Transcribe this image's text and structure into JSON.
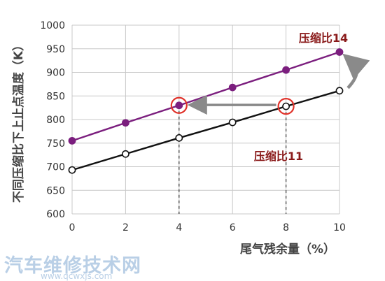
{
  "chart_data": {
    "type": "line",
    "ylabel": "不同压缩比下上止点温度（K）",
    "xlabel": "尾气残余量（%）",
    "x": [
      0,
      2,
      4,
      6,
      8,
      10
    ],
    "xlim": [
      0,
      10
    ],
    "ylim": [
      600,
      1000
    ],
    "xticks": [
      "0",
      "2",
      "4",
      "6",
      "8",
      "10"
    ],
    "yticks": [
      "600",
      "650",
      "700",
      "750",
      "800",
      "850",
      "900",
      "950",
      "1000"
    ],
    "grid": true,
    "series": [
      {
        "name": "压缩比14",
        "values": [
          755,
          793,
          830,
          868,
          905,
          943
        ],
        "color": "#7b1e7e",
        "marker": "filled"
      },
      {
        "name": "压缩比11",
        "values": [
          693,
          727,
          761,
          794,
          828,
          861
        ],
        "color": "#111111",
        "marker": "hollow"
      }
    ],
    "annotations": {
      "highlight_points": [
        {
          "series": 0,
          "x": 4
        },
        {
          "series": 1,
          "x": 8
        }
      ],
      "highlight_color": "#e0322a",
      "arrow_color": "#8a8a8a"
    }
  },
  "watermark": {
    "text": "汽车维修技术网",
    "url": "www.qcwxjs.com"
  }
}
